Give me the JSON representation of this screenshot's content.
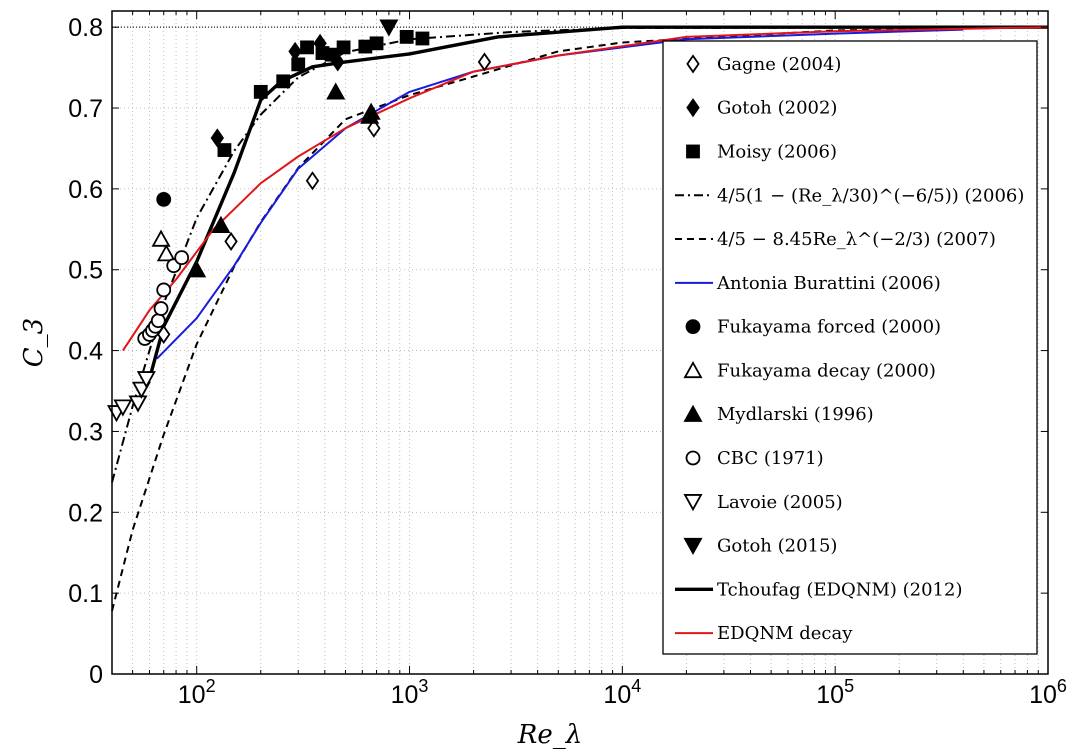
{
  "chart_data": {
    "type": "scatter",
    "title": "",
    "xlabel": "Re_λ",
    "ylabel": "C_3",
    "x_scale": "log",
    "xlim": [
      40,
      1000000
    ],
    "ylim": [
      0,
      0.82
    ],
    "grid": true,
    "legend_position": "right",
    "x_ticks": [
      {
        "value": 100,
        "label": "10^2"
      },
      {
        "value": 1000,
        "label": "10^3"
      },
      {
        "value": 10000,
        "label": "10^4"
      },
      {
        "value": 100000,
        "label": "10^5"
      },
      {
        "value": 1000000,
        "label": "10^6"
      }
    ],
    "y_ticks": [
      0,
      0.1,
      0.2,
      0.3,
      0.4,
      0.5,
      0.6,
      0.7,
      0.8
    ],
    "reference_line": {
      "y": 0.8,
      "style": "dotted"
    },
    "series": [
      {
        "name": "Gagne (2004)",
        "marker": "diamond-open",
        "color": "#000000",
        "points": [
          [
            70,
            0.42
          ],
          [
            145,
            0.535
          ],
          [
            350,
            0.61
          ],
          [
            680,
            0.675
          ],
          [
            2250,
            0.757
          ]
        ]
      },
      {
        "name": "Gotoh (2002)",
        "marker": "diamond-filled",
        "color": "#000000",
        "points": [
          [
            125,
            0.663
          ],
          [
            290,
            0.77
          ],
          [
            380,
            0.78
          ],
          [
            460,
            0.757
          ]
        ]
      },
      {
        "name": "Moisy (2006)",
        "marker": "square-filled",
        "color": "#000000",
        "points": [
          [
            135,
            0.648
          ],
          [
            200,
            0.72
          ],
          [
            255,
            0.733
          ],
          [
            300,
            0.754
          ],
          [
            330,
            0.775
          ],
          [
            390,
            0.768
          ],
          [
            430,
            0.766
          ],
          [
            490,
            0.775
          ],
          [
            620,
            0.776
          ],
          [
            700,
            0.78
          ],
          [
            970,
            0.788
          ],
          [
            1150,
            0.786
          ]
        ]
      },
      {
        "name": "4/5(1 − (Re_λ/30)^(−6/5)) (2006)",
        "line": "dash-dot",
        "color": "#000000",
        "points": [
          [
            40,
            0.237
          ],
          [
            50,
            0.331
          ],
          [
            70,
            0.458
          ],
          [
            100,
            0.564
          ],
          [
            150,
            0.647
          ],
          [
            200,
            0.692
          ],
          [
            300,
            0.738
          ],
          [
            500,
            0.769
          ],
          [
            1000,
            0.785
          ],
          [
            3000,
            0.794
          ],
          [
            10000,
            0.799
          ],
          [
            1000000,
            0.8
          ]
        ]
      },
      {
        "name": "4/5 − 8.45Re_λ^(−2/3) (2007)",
        "line": "dashed",
        "color": "#000000",
        "points": [
          [
            40,
            0.078
          ],
          [
            50,
            0.178
          ],
          [
            70,
            0.296
          ],
          [
            100,
            0.408
          ],
          [
            150,
            0.504
          ],
          [
            200,
            0.559
          ],
          [
            300,
            0.626
          ],
          [
            500,
            0.686
          ],
          [
            1000,
            0.716
          ],
          [
            2000,
            0.739
          ],
          [
            5000,
            0.77
          ],
          [
            10000,
            0.781
          ],
          [
            100000,
            0.796
          ],
          [
            1000000,
            0.8
          ]
        ]
      },
      {
        "name": "Antonia Burattini (2006)",
        "line": "solid",
        "color": "#1a1adb",
        "points": [
          [
            65,
            0.39
          ],
          [
            100,
            0.44
          ],
          [
            150,
            0.505
          ],
          [
            200,
            0.558
          ],
          [
            300,
            0.625
          ],
          [
            500,
            0.675
          ],
          [
            1000,
            0.72
          ],
          [
            2000,
            0.745
          ],
          [
            5000,
            0.765
          ],
          [
            10000,
            0.775
          ],
          [
            20000,
            0.785
          ],
          [
            100000,
            0.792
          ],
          [
            400000,
            0.797
          ]
        ]
      },
      {
        "name": "Fukayama forced (2000)",
        "marker": "circle-filled",
        "color": "#000000",
        "points": [
          [
            70,
            0.587
          ]
        ]
      },
      {
        "name": "Fukayama decay (2000)",
        "marker": "triangle-open",
        "color": "#000000",
        "points": [
          [
            68,
            0.538
          ],
          [
            72,
            0.52
          ]
        ]
      },
      {
        "name": "Mydlarski (1996)",
        "marker": "triangle-filled",
        "color": "#000000",
        "points": [
          [
            100,
            0.5
          ],
          [
            130,
            0.555
          ],
          [
            450,
            0.72
          ],
          [
            650,
            0.69
          ],
          [
            660,
            0.695
          ]
        ]
      },
      {
        "name": "CBC (1971)",
        "marker": "circle-open",
        "color": "#000000",
        "points": [
          [
            57,
            0.415
          ],
          [
            60,
            0.42
          ],
          [
            62,
            0.425
          ],
          [
            64,
            0.43
          ],
          [
            66,
            0.437
          ],
          [
            68,
            0.452
          ],
          [
            70,
            0.475
          ],
          [
            78,
            0.505
          ],
          [
            85,
            0.515
          ]
        ]
      },
      {
        "name": "Lavoie (2005)",
        "marker": "triangle-down-open",
        "color": "#000000",
        "points": [
          [
            42,
            0.323
          ],
          [
            45,
            0.33
          ],
          [
            53,
            0.335
          ],
          [
            55,
            0.352
          ],
          [
            58,
            0.365
          ]
        ]
      },
      {
        "name": "Gotoh (2015)",
        "marker": "triangle-down-filled",
        "color": "#000000",
        "points": [
          [
            800,
            0.8
          ]
        ]
      },
      {
        "name": "Tchoufag (EDQNM) (2012)",
        "line": "solid-thick",
        "color": "#000000",
        "points": [
          [
            60,
            0.365
          ],
          [
            70,
            0.43
          ],
          [
            100,
            0.51
          ],
          [
            150,
            0.62
          ],
          [
            200,
            0.71
          ],
          [
            250,
            0.733
          ],
          [
            350,
            0.751
          ],
          [
            500,
            0.757
          ],
          [
            1000,
            0.767
          ],
          [
            2600,
            0.788
          ],
          [
            10000,
            0.8
          ],
          [
            1000000,
            0.8
          ]
        ]
      },
      {
        "name": "EDQNM decay",
        "line": "solid",
        "color": "#e0161a",
        "points": [
          [
            45,
            0.4
          ],
          [
            60,
            0.45
          ],
          [
            80,
            0.488
          ],
          [
            120,
            0.55
          ],
          [
            200,
            0.607
          ],
          [
            300,
            0.64
          ],
          [
            500,
            0.675
          ],
          [
            1000,
            0.712
          ],
          [
            2000,
            0.745
          ],
          [
            5000,
            0.765
          ],
          [
            20000,
            0.788
          ],
          [
            100000,
            0.795
          ],
          [
            1000000,
            0.8
          ]
        ]
      }
    ]
  }
}
